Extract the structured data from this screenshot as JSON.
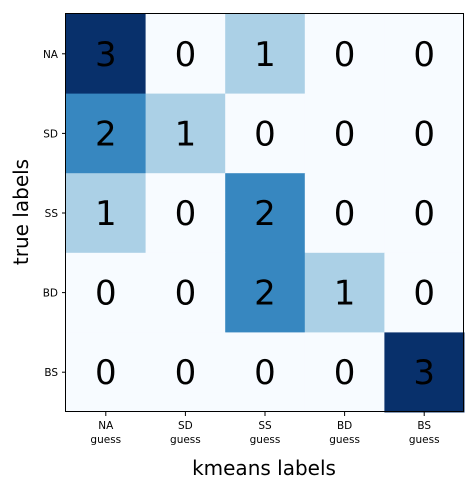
{
  "chart_data": {
    "type": "heatmap",
    "xlabel": "kmeans labels",
    "ylabel": "true labels",
    "x_categories": [
      [
        "NA",
        "guess"
      ],
      [
        "SD",
        "guess"
      ],
      [
        "SS",
        "guess"
      ],
      [
        "BD",
        "guess"
      ],
      [
        "BS",
        "guess"
      ]
    ],
    "y_categories": [
      "NA",
      "SD",
      "SS",
      "BD",
      "BS"
    ],
    "values": [
      [
        3,
        0,
        1,
        0,
        0
      ],
      [
        2,
        1,
        0,
        0,
        0
      ],
      [
        1,
        0,
        2,
        0,
        0
      ],
      [
        0,
        0,
        2,
        1,
        0
      ],
      [
        0,
        0,
        0,
        0,
        3
      ]
    ],
    "colormap": {
      "name": "Blues",
      "vmin": 0,
      "vmax": 3,
      "stops": [
        "#f7fbff",
        "#deebf7",
        "#c6dbef",
        "#9ecae1",
        "#6baed6",
        "#4292c6",
        "#2171b5",
        "#08519c",
        "#08306b"
      ]
    },
    "grid": false,
    "legend": "none"
  }
}
